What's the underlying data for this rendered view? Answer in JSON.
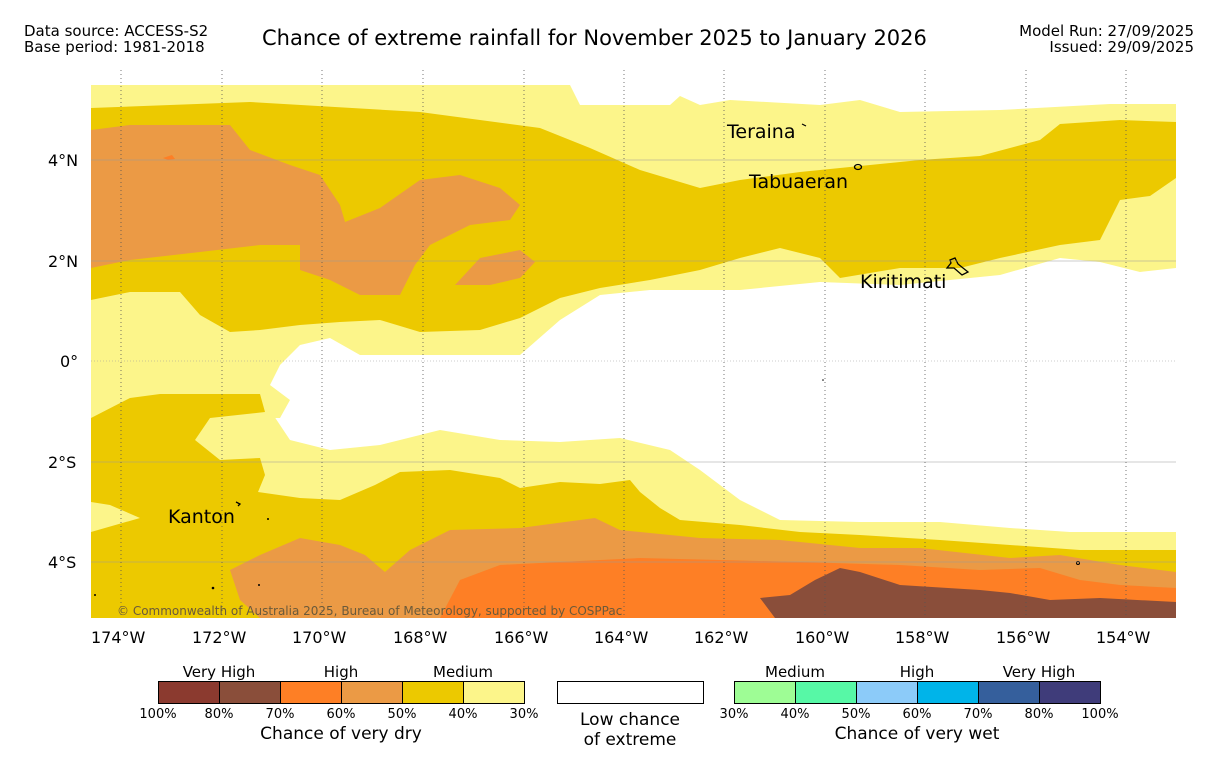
{
  "header": {
    "source_line1": "Data source: ACCESS-S2",
    "source_line2": "Base period: 1981-2018",
    "title": "Chance of extreme rainfall for November 2025 to January 2026",
    "run_line1": "Model Run: 27/09/2025",
    "run_line2": "Issued: 29/09/2025"
  },
  "map": {
    "lon_labels": [
      "174°W",
      "172°W",
      "170°W",
      "168°W",
      "166°W",
      "164°W",
      "162°W",
      "160°W",
      "158°W",
      "156°W",
      "154°W"
    ],
    "lat_labels": [
      "4°N",
      "2°N",
      "0°",
      "2°S",
      "4°S"
    ],
    "places": {
      "teraina": "Teraina",
      "tabuaeran": "Tabuaeran",
      "kiritimati": "Kiritimati",
      "kanton": "Kanton"
    },
    "copyright": "© Commonwealth of Australia 2025, Bureau of Meteorology, supported by COSPPac",
    "colors": {
      "dry_very_high_1": "#8b3a2f",
      "dry_very_high_2": "#8a4e3a",
      "dry_high_1": "#fe7f25",
      "dry_high_2": "#eb9a45",
      "dry_medium_1": "#ecc900",
      "dry_medium_2": "#fcf58a",
      "low": "#ffffff",
      "wet_medium_1": "#9efd95",
      "wet_medium_2": "#57f8a6",
      "wet_high_1": "#8ccbf9",
      "wet_high_2": "#00b4e9",
      "wet_very_high_1": "#355f9c",
      "wet_very_high_2": "#3f3c7a"
    }
  },
  "legend": {
    "dry": {
      "categories": [
        "Very High",
        "High",
        "Medium"
      ],
      "ticks": [
        "100%",
        "80%",
        "70%",
        "60%",
        "50%",
        "40%",
        "30%"
      ],
      "caption": "Chance of very dry"
    },
    "low": {
      "caption_line1": "Low chance",
      "caption_line2": "of extreme"
    },
    "wet": {
      "categories": [
        "Medium",
        "High",
        "Very High"
      ],
      "ticks": [
        "30%",
        "40%",
        "50%",
        "60%",
        "70%",
        "80%",
        "100%"
      ],
      "caption": "Chance of very wet"
    }
  }
}
